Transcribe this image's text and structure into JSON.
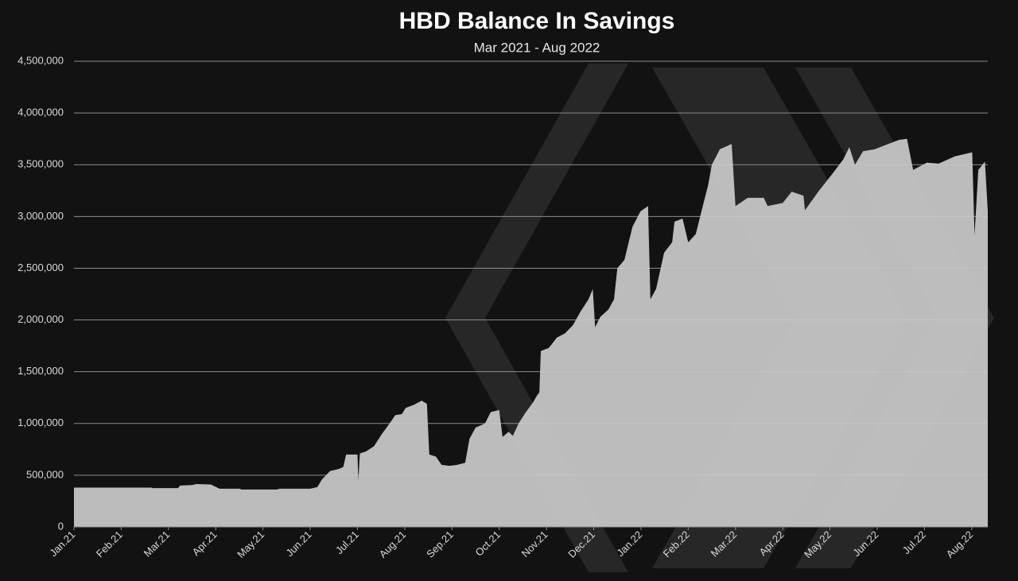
{
  "chart_data": {
    "type": "area",
    "title": "HBD Balance In Savings",
    "subtitle": "Mar 2021 - Aug 2022",
    "color": "#c9c9c9",
    "grid": true,
    "xlim": [
      0,
      19.34
    ],
    "xticks": [
      {
        "value": 0,
        "label": "Jan.21"
      },
      {
        "value": 1,
        "label": "Feb.21"
      },
      {
        "value": 2,
        "label": "Mar.21"
      },
      {
        "value": 3,
        "label": "Apr.21"
      },
      {
        "value": 4,
        "label": "May.21"
      },
      {
        "value": 5,
        "label": "Jun.21"
      },
      {
        "value": 6,
        "label": "Jul.21"
      },
      {
        "value": 7,
        "label": "Aug.21"
      },
      {
        "value": 8,
        "label": "Sep.21"
      },
      {
        "value": 9,
        "label": "Oct.21"
      },
      {
        "value": 10,
        "label": "Nov.21"
      },
      {
        "value": 11,
        "label": "Dec.21"
      },
      {
        "value": 12,
        "label": "Jan.22"
      },
      {
        "value": 13,
        "label": "Feb.22"
      },
      {
        "value": 14,
        "label": "Mar.22"
      },
      {
        "value": 15,
        "label": "Apr.22"
      },
      {
        "value": 16,
        "label": "May.22"
      },
      {
        "value": 17,
        "label": "Jun.22"
      },
      {
        "value": 18,
        "label": "Jul.22"
      },
      {
        "value": 19,
        "label": "Aug.22"
      }
    ],
    "ylim": [
      0,
      4500000
    ],
    "yticks": [
      0,
      {
        "value": 500000,
        "label": "500,000"
      },
      {
        "value": 1000000,
        "label": "1,000,000"
      },
      {
        "value": 1500000,
        "label": "1,500,000"
      },
      {
        "value": 2000000,
        "label": "2,000,000"
      },
      {
        "value": 2500000,
        "label": "2,500,000"
      },
      {
        "value": 3000000,
        "label": "3,000,000"
      },
      {
        "value": 3500000,
        "label": "3,500,000"
      },
      {
        "value": 4000000,
        "label": "4,000,000"
      },
      {
        "value": 4500000,
        "label": "4,500,000"
      }
    ],
    "x": [
      0,
      1.65,
      1.66,
      2.2,
      2.25,
      2.5,
      2.6,
      2.9,
      3.08,
      3.5,
      3.55,
      4.3,
      4.35,
      5.0,
      5.15,
      5.25,
      5.42,
      5.6,
      5.7,
      5.76,
      6.0,
      6.02,
      6.05,
      6.18,
      6.35,
      6.52,
      6.68,
      6.8,
      6.94,
      7.02,
      7.19,
      7.36,
      7.47,
      7.52,
      7.66,
      7.78,
      7.95,
      8.11,
      8.28,
      8.37,
      8.5,
      8.7,
      8.82,
      9.0,
      9.07,
      9.2,
      9.29,
      9.41,
      9.55,
      9.71,
      9.8,
      9.85,
      9.88,
      10.05,
      10.22,
      10.39,
      10.56,
      10.72,
      10.89,
      10.98,
      11.03,
      11.14,
      11.31,
      11.43,
      11.5,
      11.65,
      11.82,
      11.99,
      12.15,
      12.2,
      12.32,
      12.49,
      12.66,
      12.71,
      12.88,
      13.0,
      13.16,
      13.28,
      13.42,
      13.5,
      13.67,
      13.92,
      14.0,
      14.26,
      14.6,
      14.68,
      15.0,
      15.19,
      15.44,
      15.47,
      15.77,
      16.03,
      16.28,
      16.41,
      16.53,
      16.7,
      16.95,
      17.12,
      17.46,
      17.63,
      17.76,
      18.05,
      18.3,
      18.64,
      19.01,
      19.06,
      19.14,
      19.28,
      19.34
    ],
    "values": [
      380000,
      380000,
      375000,
      375000,
      400000,
      405000,
      415000,
      410000,
      370000,
      370000,
      362000,
      362000,
      370000,
      370000,
      385000,
      460000,
      540000,
      560000,
      580000,
      700000,
      700000,
      450000,
      710000,
      730000,
      780000,
      900000,
      1000000,
      1080000,
      1090000,
      1150000,
      1180000,
      1220000,
      1190000,
      700000,
      680000,
      600000,
      590000,
      600000,
      620000,
      850000,
      960000,
      1000000,
      1110000,
      1130000,
      870000,
      920000,
      880000,
      1000000,
      1100000,
      1200000,
      1270000,
      1300000,
      1700000,
      1730000,
      1830000,
      1870000,
      1950000,
      2080000,
      2200000,
      2300000,
      1930000,
      2030000,
      2100000,
      2200000,
      2500000,
      2580000,
      2900000,
      3050000,
      3100000,
      2200000,
      2300000,
      2650000,
      2750000,
      2950000,
      2980000,
      2750000,
      2830000,
      3050000,
      3300000,
      3500000,
      3650000,
      3700000,
      3100000,
      3180000,
      3180000,
      3100000,
      3130000,
      3240000,
      3200000,
      3060000,
      3250000,
      3400000,
      3550000,
      3670000,
      3500000,
      3630000,
      3650000,
      3680000,
      3740000,
      3750000,
      3450000,
      3520000,
      3510000,
      3580000,
      3620000,
      2820000,
      3450000,
      3530000,
      3050000
    ]
  }
}
